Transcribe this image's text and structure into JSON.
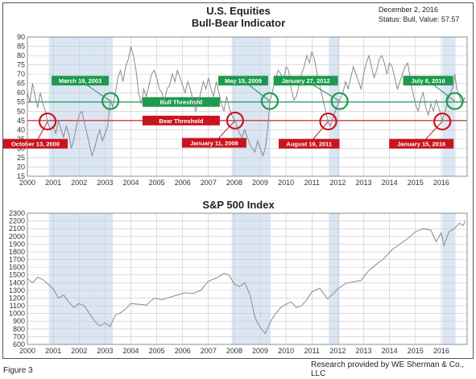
{
  "header": {
    "date": "December 2, 2016",
    "status": "Status: Bull, Value: 57.57"
  },
  "footer": {
    "figure_label": "Figure 3",
    "credit": "Research provided by WE Sherman & Co., LLC"
  },
  "colors": {
    "bull": "#1e9a4e",
    "bear": "#c8141e",
    "shade": "#dbe6f4",
    "line": "#8a8a8a",
    "grid": "#c8c8c8"
  },
  "chart_data": [
    {
      "type": "line",
      "title": "U.S. Equities",
      "subtitle": "Bull-Bear Indicator",
      "x_ticks": [
        "2000",
        "2001",
        "2002",
        "2003",
        "2004",
        "2005",
        "2006",
        "2007",
        "2008",
        "2009",
        "2010",
        "2011",
        "2012",
        "2013",
        "2014",
        "2015",
        "2016"
      ],
      "xlim": [
        2000,
        2017
      ],
      "ylim": [
        15,
        90
      ],
      "y_ticks": [
        15,
        20,
        25,
        30,
        35,
        40,
        45,
        50,
        55,
        60,
        65,
        70,
        75,
        80,
        85,
        90
      ],
      "thresholds": [
        {
          "label": "Bull Threshold",
          "value": 55
        },
        {
          "label": "Bear Threshold",
          "value": 45
        }
      ],
      "shaded_periods": [
        [
          2000.83,
          2003.3
        ],
        [
          2007.9,
          2009.4
        ],
        [
          2011.65,
          2012.07
        ],
        [
          2016.04,
          2016.55
        ]
      ],
      "callouts": [
        {
          "label": "October 13, 2000",
          "x": 2000.78,
          "y": 44.5,
          "kind": "bear"
        },
        {
          "label": "March 19, 2003",
          "x": 2003.21,
          "y": 55.5,
          "kind": "bull"
        },
        {
          "label": "January 11, 2008",
          "x": 2008.03,
          "y": 45,
          "kind": "bear"
        },
        {
          "label": "May 15, 2009",
          "x": 2009.37,
          "y": 55.5,
          "kind": "bull"
        },
        {
          "label": "August 19, 2011",
          "x": 2011.63,
          "y": 44.5,
          "kind": "bear"
        },
        {
          "label": "January 27, 2012",
          "x": 2012.07,
          "y": 55.5,
          "kind": "bull"
        },
        {
          "label": "January 15, 2016",
          "x": 2016.04,
          "y": 44.5,
          "kind": "bear"
        },
        {
          "label": "July 8, 2016",
          "x": 2016.52,
          "y": 55.5,
          "kind": "bull"
        }
      ],
      "series": [
        {
          "x": [
            2000,
            2000.1,
            2000.2,
            2000.3,
            2000.4,
            2000.5,
            2000.6,
            2000.7,
            2000.78,
            2000.9,
            2001.0,
            2001.1,
            2001.2,
            2001.3,
            2001.4,
            2001.5,
            2001.6,
            2001.7,
            2001.8,
            2001.9,
            2002.0,
            2002.1,
            2002.2,
            2002.3,
            2002.4,
            2002.5,
            2002.6,
            2002.7,
            2002.8,
            2002.9,
            2003.0,
            2003.1,
            2003.21,
            2003.3,
            2003.4,
            2003.5,
            2003.6,
            2003.7,
            2003.8,
            2003.9,
            2004.0,
            2004.1,
            2004.2,
            2004.3,
            2004.4,
            2004.5,
            2004.6,
            2004.7,
            2004.8,
            2004.9,
            2005.0,
            2005.1,
            2005.2,
            2005.3,
            2005.4,
            2005.5,
            2005.6,
            2005.7,
            2005.8,
            2005.9,
            2006.0,
            2006.1,
            2006.2,
            2006.3,
            2006.4,
            2006.5,
            2006.6,
            2006.7,
            2006.8,
            2006.9,
            2007.0,
            2007.1,
            2007.2,
            2007.3,
            2007.4,
            2007.5,
            2007.6,
            2007.7,
            2007.8,
            2007.9,
            2008.03,
            2008.1,
            2008.2,
            2008.3,
            2008.4,
            2008.5,
            2008.6,
            2008.7,
            2008.8,
            2008.9,
            2009.0,
            2009.1,
            2009.2,
            2009.3,
            2009.37,
            2009.5,
            2009.6,
            2009.7,
            2009.8,
            2009.9,
            2010.0,
            2010.1,
            2010.2,
            2010.3,
            2010.4,
            2010.5,
            2010.6,
            2010.7,
            2010.8,
            2010.9,
            2011.0,
            2011.1,
            2011.2,
            2011.3,
            2011.4,
            2011.5,
            2011.63,
            2011.7,
            2011.8,
            2011.9,
            2012.07,
            2012.2,
            2012.3,
            2012.4,
            2012.5,
            2012.6,
            2012.7,
            2012.8,
            2012.9,
            2013.0,
            2013.1,
            2013.2,
            2013.3,
            2013.4,
            2013.5,
            2013.6,
            2013.7,
            2013.8,
            2013.9,
            2014.0,
            2014.1,
            2014.2,
            2014.3,
            2014.4,
            2014.5,
            2014.6,
            2014.7,
            2014.8,
            2014.9,
            2015.0,
            2015.1,
            2015.2,
            2015.3,
            2015.4,
            2015.5,
            2015.6,
            2015.7,
            2015.8,
            2015.9,
            2016.04,
            2016.15,
            2016.3,
            2016.45,
            2016.52,
            2016.6,
            2016.7,
            2016.8,
            2016.92
          ],
          "y": [
            60,
            55,
            65,
            58,
            52,
            60,
            54,
            50,
            44,
            40,
            42,
            38,
            45,
            40,
            36,
            42,
            38,
            30,
            35,
            42,
            48,
            50,
            44,
            38,
            32,
            26,
            30,
            36,
            40,
            34,
            38,
            42,
            56,
            52,
            60,
            68,
            72,
            66,
            74,
            78,
            85,
            80,
            72,
            60,
            54,
            62,
            58,
            64,
            70,
            72,
            68,
            62,
            60,
            56,
            62,
            64,
            70,
            66,
            72,
            68,
            64,
            60,
            66,
            62,
            56,
            50,
            54,
            60,
            66,
            62,
            68,
            62,
            58,
            66,
            60,
            54,
            50,
            58,
            52,
            48,
            45,
            42,
            38,
            36,
            40,
            36,
            32,
            30,
            28,
            34,
            30,
            26,
            30,
            42,
            55,
            62,
            68,
            72,
            70,
            66,
            74,
            72,
            62,
            56,
            58,
            64,
            70,
            74,
            80,
            76,
            82,
            78,
            70,
            64,
            58,
            52,
            44,
            42,
            46,
            50,
            56,
            60,
            66,
            62,
            68,
            74,
            70,
            66,
            62,
            70,
            76,
            80,
            74,
            68,
            72,
            78,
            80,
            76,
            70,
            76,
            74,
            68,
            62,
            66,
            70,
            74,
            76,
            68,
            60,
            54,
            50,
            56,
            60,
            52,
            48,
            54,
            50,
            56,
            52,
            45,
            50,
            58,
            63,
            70,
            62,
            58,
            54,
            57.57
          ]
        }
      ]
    },
    {
      "type": "line",
      "title": "S&P 500 Index",
      "x_ticks": [
        "2000",
        "2001",
        "2002",
        "2003",
        "2004",
        "2005",
        "2006",
        "2007",
        "2008",
        "2009",
        "2010",
        "2011",
        "2012",
        "2013",
        "2014",
        "2015",
        "2016"
      ],
      "xlim": [
        2000,
        2017
      ],
      "ylim": [
        600,
        2300
      ],
      "y_ticks": [
        600,
        700,
        800,
        900,
        1000,
        1100,
        1200,
        1300,
        1400,
        1500,
        1600,
        1700,
        1800,
        1900,
        2000,
        2100,
        2200,
        2300
      ],
      "shaded_periods": [
        [
          2000.83,
          2003.3
        ],
        [
          2007.9,
          2009.4
        ],
        [
          2011.65,
          2012.07
        ],
        [
          2016.04,
          2016.55
        ]
      ],
      "series": [
        {
          "x": [
            2000,
            2000.2,
            2000.4,
            2000.6,
            2000.8,
            2001.0,
            2001.2,
            2001.4,
            2001.6,
            2001.8,
            2002.0,
            2002.2,
            2002.4,
            2002.6,
            2002.8,
            2003.0,
            2003.2,
            2003.4,
            2003.6,
            2003.8,
            2004.0,
            2004.3,
            2004.6,
            2004.9,
            2005.2,
            2005.5,
            2005.8,
            2006.1,
            2006.4,
            2006.7,
            2007.0,
            2007.3,
            2007.6,
            2007.8,
            2008.0,
            2008.2,
            2008.4,
            2008.6,
            2008.8,
            2008.9,
            2009.0,
            2009.2,
            2009.4,
            2009.6,
            2009.8,
            2010.0,
            2010.2,
            2010.4,
            2010.6,
            2010.8,
            2011.0,
            2011.3,
            2011.6,
            2011.8,
            2012.0,
            2012.3,
            2012.6,
            2012.9,
            2013.2,
            2013.5,
            2013.8,
            2014.1,
            2014.4,
            2014.7,
            2015.0,
            2015.3,
            2015.6,
            2015.8,
            2016.0,
            2016.1,
            2016.3,
            2016.5,
            2016.7,
            2016.85,
            2016.92
          ],
          "y": [
            1450,
            1400,
            1470,
            1440,
            1380,
            1320,
            1200,
            1240,
            1150,
            1080,
            1130,
            1100,
            1000,
            900,
            840,
            880,
            830,
            980,
            1010,
            1060,
            1130,
            1120,
            1110,
            1200,
            1180,
            1210,
            1240,
            1270,
            1260,
            1300,
            1420,
            1460,
            1520,
            1500,
            1380,
            1350,
            1400,
            1250,
            950,
            880,
            820,
            740,
            900,
            1000,
            1080,
            1120,
            1150,
            1080,
            1100,
            1180,
            1280,
            1330,
            1190,
            1250,
            1320,
            1390,
            1410,
            1430,
            1560,
            1640,
            1720,
            1830,
            1900,
            1970,
            2060,
            2100,
            2080,
            1930,
            2050,
            1880,
            2060,
            2100,
            2170,
            2140,
            2200
          ]
        }
      ]
    }
  ]
}
